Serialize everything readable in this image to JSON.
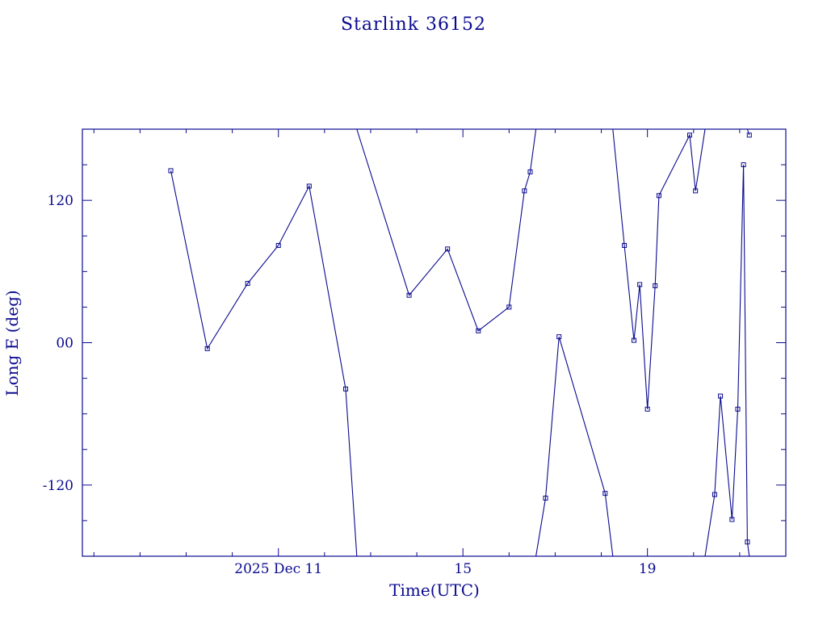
{
  "chart_data": {
    "type": "line",
    "title": "Starlink 36152",
    "xlabel": "Time(UTC)",
    "ylabel": "Long E (deg)",
    "x_unit": "days",
    "xlim": [
      "2025-12-06T18:00",
      "2025-12-22T00:00"
    ],
    "ylim": [
      -180,
      180
    ],
    "xticks": [
      {
        "x": "2025-12-11T00:00",
        "label": "2025 Dec 11"
      },
      {
        "x": "2025-12-15T00:00",
        "label": "15"
      },
      {
        "x": "2025-12-19T00:00",
        "label": "19"
      }
    ],
    "yticks": [
      {
        "y": 120,
        "label": "120"
      },
      {
        "y": 0,
        "label": "00"
      },
      {
        "y": -120,
        "label": "-120"
      }
    ],
    "grid": false,
    "marker": "square",
    "segments": [
      [
        {
          "x": "2025-12-08T16:00",
          "y": 145
        },
        {
          "x": "2025-12-09T11:00",
          "y": -5
        },
        {
          "x": "2025-12-10T08:00",
          "y": 50
        },
        {
          "x": "2025-12-11T00:00",
          "y": 82
        },
        {
          "x": "2025-12-11T16:00",
          "y": 132
        },
        {
          "x": "2025-12-12T11:00",
          "y": -39
        },
        {
          "x": "2025-12-12T16:48",
          "y": -180
        }
      ],
      [
        {
          "x": "2025-12-12T16:48",
          "y": 180
        },
        {
          "x": "2025-12-13T20:00",
          "y": 40
        },
        {
          "x": "2025-12-14T16:00",
          "y": 79
        },
        {
          "x": "2025-12-15T08:00",
          "y": 10
        },
        {
          "x": "2025-12-16T00:00",
          "y": 30
        },
        {
          "x": "2025-12-16T08:00",
          "y": 128
        },
        {
          "x": "2025-12-16T11:00",
          "y": 144
        },
        {
          "x": "2025-12-16T14:00",
          "y": 180
        }
      ],
      [
        {
          "x": "2025-12-16T14:00",
          "y": -180
        },
        {
          "x": "2025-12-16T19:00",
          "y": -131
        },
        {
          "x": "2025-12-17T02:00",
          "y": 5
        },
        {
          "x": "2025-12-18T02:00",
          "y": -127
        },
        {
          "x": "2025-12-18T06:00",
          "y": -180
        }
      ],
      [
        {
          "x": "2025-12-18T06:00",
          "y": 180
        },
        {
          "x": "2025-12-18T12:00",
          "y": 82
        },
        {
          "x": "2025-12-18T17:00",
          "y": 2
        },
        {
          "x": "2025-12-18T20:00",
          "y": 49
        },
        {
          "x": "2025-12-19T00:00",
          "y": -56
        },
        {
          "x": "2025-12-19T04:00",
          "y": 48
        },
        {
          "x": "2025-12-19T06:00",
          "y": 124
        },
        {
          "x": "2025-12-19T22:00",
          "y": 175
        },
        {
          "x": "2025-12-20T01:00",
          "y": 128
        },
        {
          "x": "2025-12-20T06:00",
          "y": 180
        }
      ],
      [
        {
          "x": "2025-12-20T06:00",
          "y": -180
        },
        {
          "x": "2025-12-20T11:00",
          "y": -128
        },
        {
          "x": "2025-12-20T14:00",
          "y": -45
        },
        {
          "x": "2025-12-20T20:00",
          "y": -149
        },
        {
          "x": "2025-12-20T23:00",
          "y": -56
        },
        {
          "x": "2025-12-21T02:00",
          "y": 150
        },
        {
          "x": "2025-12-21T04:00",
          "y": -168
        },
        {
          "x": "2025-12-21T05:00",
          "y": -180
        }
      ],
      [
        {
          "x": "2025-12-21T04:00",
          "y": 180
        },
        {
          "x": "2025-12-21T05:00",
          "y": 175
        }
      ]
    ]
  }
}
